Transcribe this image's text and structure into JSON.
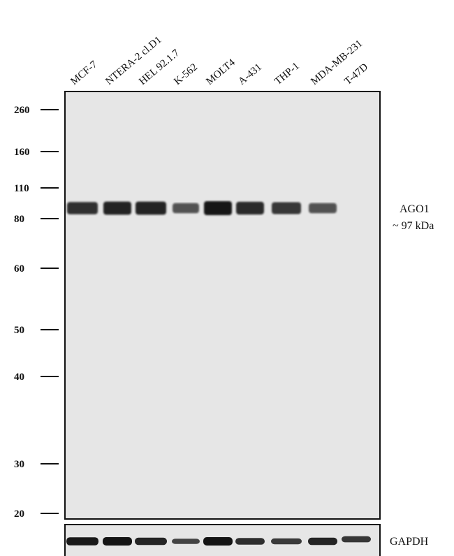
{
  "lanes": [
    "MCF-7",
    "NTERA-2 cl.D1",
    "HEL 92.1.7",
    "K-562",
    "MOLT4",
    "A-431",
    "THP-1",
    "MDA-MB-231",
    "T-47D"
  ],
  "markers_kda": [
    "260",
    "160",
    "110",
    "80",
    "60",
    "50",
    "40",
    "30",
    "20"
  ],
  "target": {
    "name": "AGO1",
    "size": "~ 97 kDa",
    "relative_intensity": [
      0.8,
      0.9,
      0.9,
      0.55,
      1.0,
      0.85,
      0.75,
      0.55,
      0
    ]
  },
  "loading_control": {
    "name": "GAPDH",
    "relative_intensity": [
      0.95,
      1.0,
      0.8,
      0.45,
      1.0,
      0.7,
      0.55,
      0.8,
      0.6
    ]
  },
  "colors": {
    "membrane": "#e6e6e6",
    "band": "#141414"
  }
}
